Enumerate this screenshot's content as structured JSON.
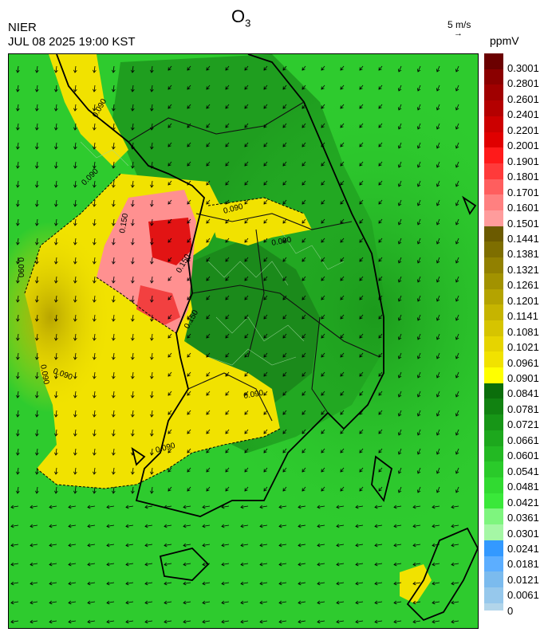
{
  "header": {
    "org": "NIER",
    "timestamp": "JUL 08 2025 19:00 KST",
    "title_main": "O",
    "title_sub": "3"
  },
  "wind_reference": {
    "label": "5 m/s",
    "arrow": "→"
  },
  "colorbar": {
    "unit": "ppmV",
    "labels": [
      "0.3001",
      "0.2801",
      "0.2601",
      "0.2401",
      "0.2201",
      "0.2001",
      "0.1901",
      "0.1801",
      "0.1701",
      "0.1601",
      "0.1501",
      "0.1441",
      "0.1381",
      "0.1321",
      "0.1261",
      "0.1201",
      "0.1141",
      "0.1081",
      "0.1021",
      "0.0961",
      "0.0901",
      "0.0841",
      "0.0781",
      "0.0721",
      "0.0661",
      "0.0601",
      "0.0541",
      "0.0481",
      "0.0421",
      "0.0361",
      "0.0301",
      "0.0241",
      "0.0181",
      "0.0121",
      "0.0061",
      "0"
    ],
    "colors": [
      "#6b0000",
      "#8b0000",
      "#a00000",
      "#b40000",
      "#cc0000",
      "#e00000",
      "#ff1a1a",
      "#ff3a3a",
      "#ff5e5e",
      "#ff8080",
      "#ff9c9c",
      "#6b5a00",
      "#7e6e00",
      "#918000",
      "#a29200",
      "#b4a300",
      "#c6b400",
      "#d6c400",
      "#e6d400",
      "#f1e200",
      "#ffff00",
      "#0b6e0b",
      "#118211",
      "#179617",
      "#1da81d",
      "#23b923",
      "#2aca2a",
      "#31da31",
      "#3ae83a",
      "#7ef57e",
      "#a5f7a5",
      "#3399ff",
      "#5caeff",
      "#7bbbee",
      "#96c8ec",
      "#b2d5ea"
    ]
  },
  "map": {
    "contour_labels": [
      "0.090",
      "0.090",
      "0.090",
      "0.090",
      "0.090",
      "0.090",
      "0.090",
      "0.150",
      "0.150",
      "0.150",
      "0.090",
      "0.090"
    ]
  }
}
